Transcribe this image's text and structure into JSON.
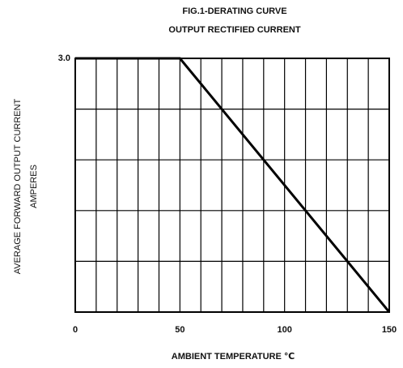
{
  "chart_data": {
    "type": "line",
    "title": [
      "FIG.1-DERATING CURVE",
      "OUTPUT RECTIFIED CURRENT"
    ],
    "ylabel": [
      "AVERAGE FORWARD OUTPUT CURRENT",
      "AMPERES"
    ],
    "xlabel": "AMBIENT TEMPERATURE ℃",
    "series": [
      {
        "color": "#000000",
        "x": [
          0,
          50,
          150
        ],
        "values": [
          3,
          3,
          0
        ]
      }
    ],
    "xlim": [
      0,
      150
    ],
    "ylim": [
      0,
      3
    ],
    "xticks": [
      0,
      50,
      100,
      150
    ],
    "yticks": [
      {
        "value": 3,
        "label": "3.0"
      }
    ],
    "xgrid": [
      0,
      10,
      20,
      30,
      40,
      50,
      60,
      70,
      80,
      90,
      100,
      110,
      120,
      130,
      140,
      150
    ],
    "ygrid": [
      0,
      0.6,
      1.2,
      1.8,
      2.4,
      3
    ],
    "grid": true
  }
}
